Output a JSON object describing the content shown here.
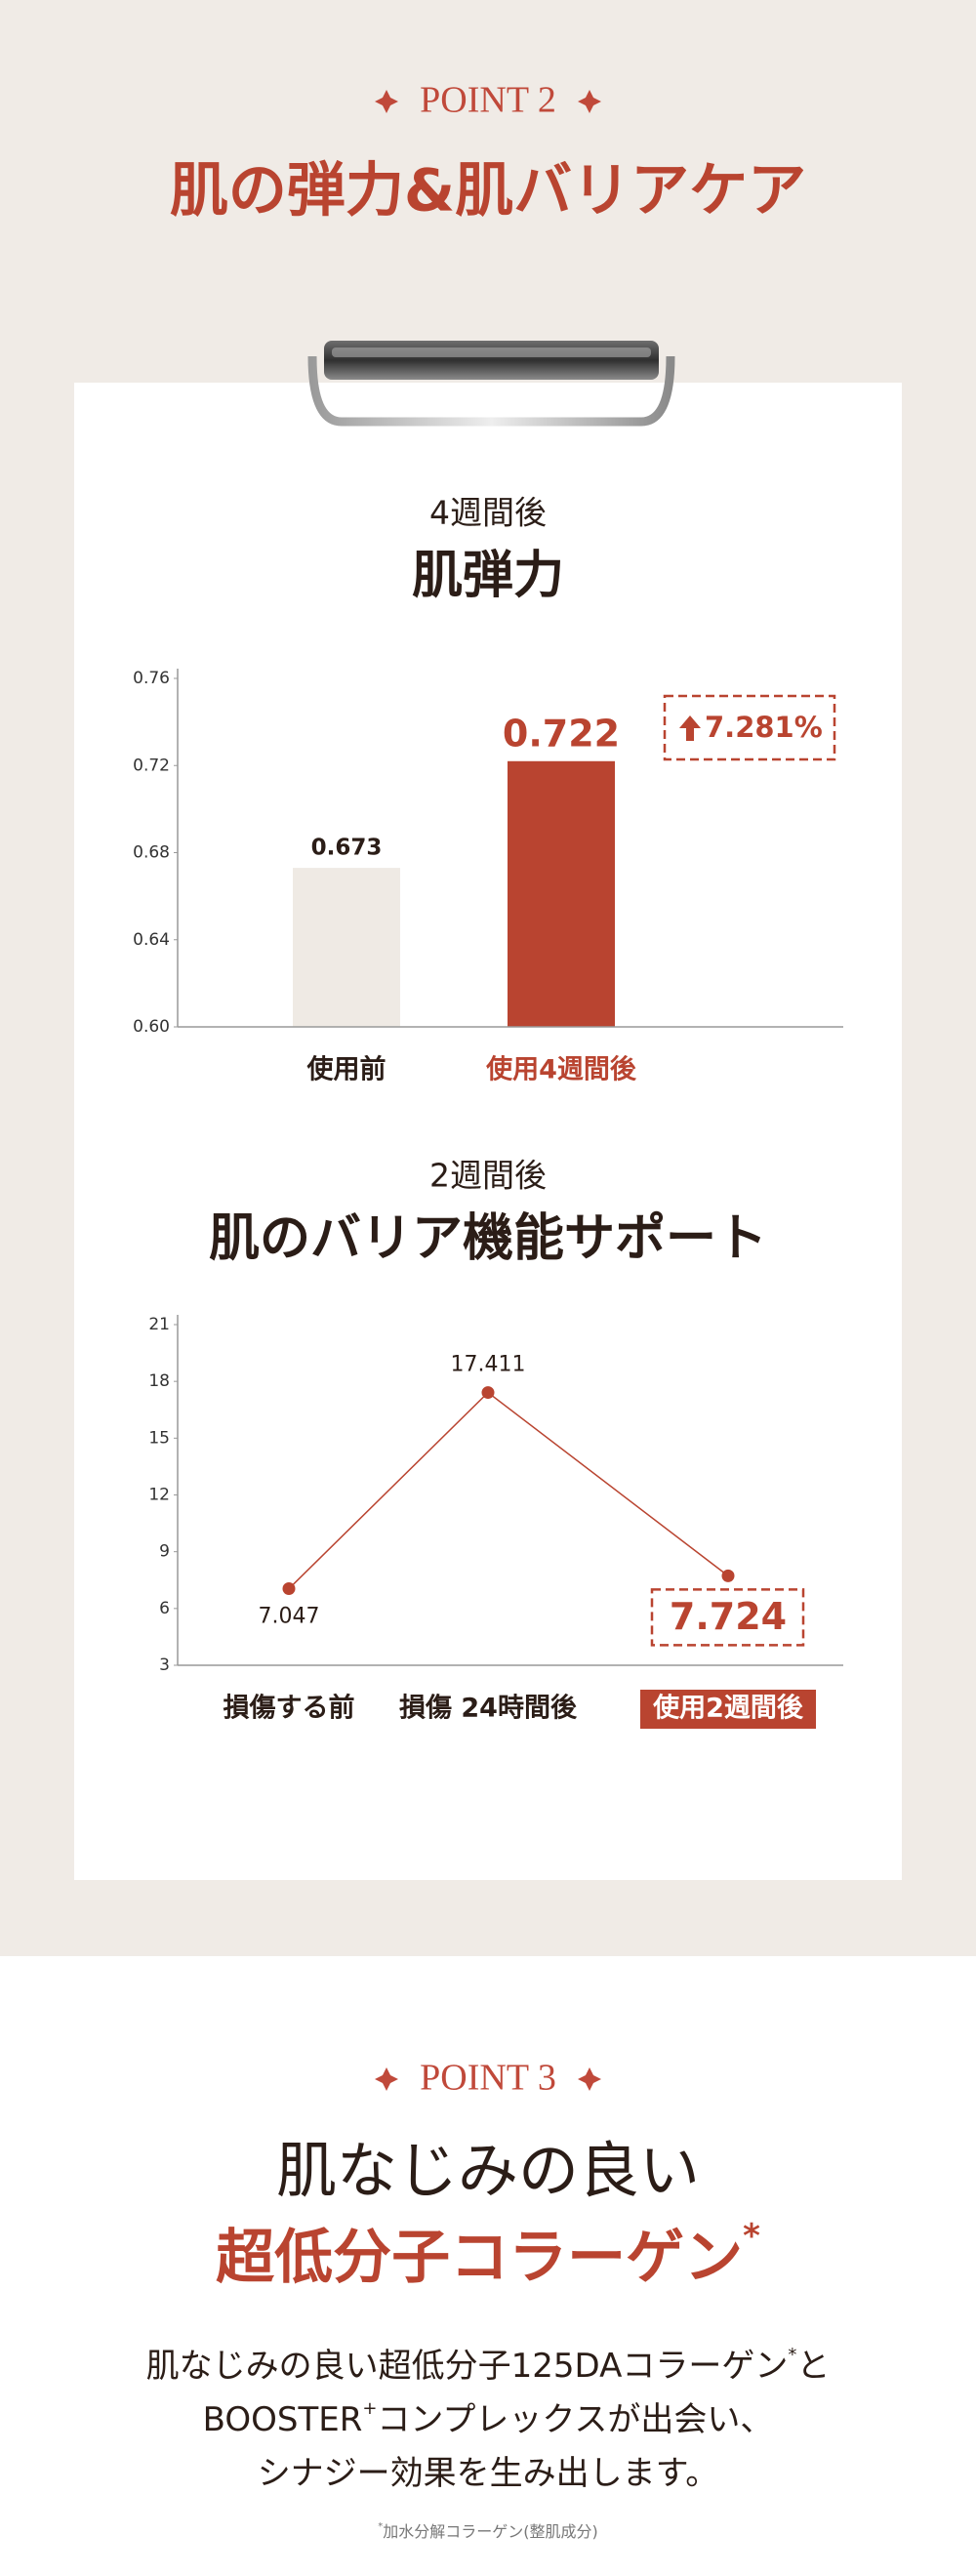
{
  "point2": {
    "label": "POINT 2",
    "title": "肌の弾力&肌バリアケア"
  },
  "chart_data": [
    {
      "type": "bar",
      "subtitle": "4週間後",
      "title": "肌弾力",
      "categories": [
        "使用前",
        "使用4週間後"
      ],
      "values": [
        0.673,
        0.722
      ],
      "colors": [
        "#efeae4",
        "#b94430"
      ],
      "ylim": [
        0.6,
        0.76
      ],
      "yticks": [
        {
          "value": 0.6,
          "label": "0.60"
        },
        0.64,
        0.68,
        0.72,
        0.76
      ],
      "annotation": "7.281%"
    },
    {
      "type": "line",
      "subtitle": "2週間後",
      "title": "肌のバリア機能サポート",
      "categories": [
        "損傷する前",
        "損傷 24時間後",
        "使用2週間後"
      ],
      "values": [
        7.047,
        17.411,
        7.724
      ],
      "color": "#b94430",
      "ylim": [
        3,
        21
      ],
      "yticks": [
        3,
        6,
        9,
        12,
        15,
        18,
        21
      ]
    }
  ],
  "point3": {
    "label": "POINT 3",
    "title_line1": "肌なじみの良い",
    "title_line2": "超低分子コラーゲン",
    "title_mark": "*",
    "body": [
      [
        "肌なじみの良い超低分子125DAコラーゲン",
        "*",
        "と"
      ],
      [
        "BOOSTER",
        "+",
        "コンプレックスが出会い、"
      ],
      [
        "シナジー効果を生み出します。"
      ]
    ],
    "footnote": [
      "*",
      "加水分解コラーゲン(整肌成分)"
    ]
  }
}
